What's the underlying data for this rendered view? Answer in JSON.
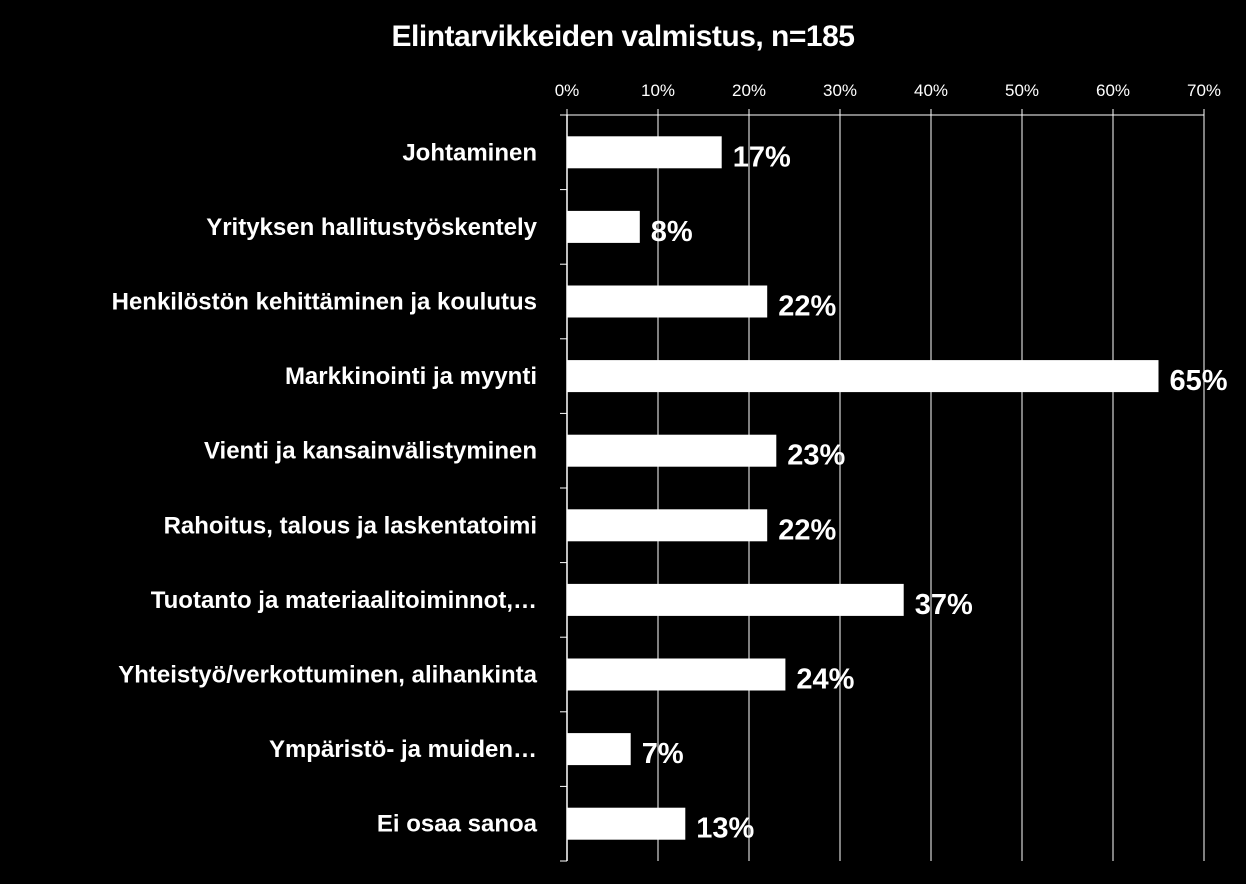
{
  "chart_data": {
    "type": "bar",
    "orientation": "horizontal",
    "title": "Elintarvikkeiden valmistus, n=185",
    "categories": [
      "Johtaminen",
      "Yrityksen hallitustyöskentely",
      "Henkilöstön kehittäminen ja koulutus",
      "Markkinointi ja myynti",
      "Vienti ja kansainvälistyminen",
      "Rahoitus, talous ja laskentatoimi",
      "Tuotanto ja materiaalitoiminnot,…",
      "Yhteistyö/verkottuminen, alihankinta",
      "Ympäristö- ja muiden…",
      "Ei osaa sanoa"
    ],
    "values": [
      17,
      8,
      22,
      65,
      23,
      22,
      37,
      24,
      7,
      13
    ],
    "data_labels": [
      "17%",
      "8%",
      "22%",
      "65%",
      "23%",
      "22%",
      "37%",
      "24%",
      "7%",
      "13%"
    ],
    "xlim": [
      0,
      70
    ],
    "ticks": [
      0,
      10,
      20,
      30,
      40,
      50,
      60,
      70
    ],
    "tick_labels": [
      "0%",
      "10%",
      "20%",
      "30%",
      "40%",
      "50%",
      "60%",
      "70%"
    ],
    "xaxis_position": "top",
    "grid": true,
    "legend": "none",
    "colors": {
      "background": "#000000",
      "bar": "#ffffff",
      "text": "#ffffff",
      "grid": "#ffffff"
    }
  }
}
